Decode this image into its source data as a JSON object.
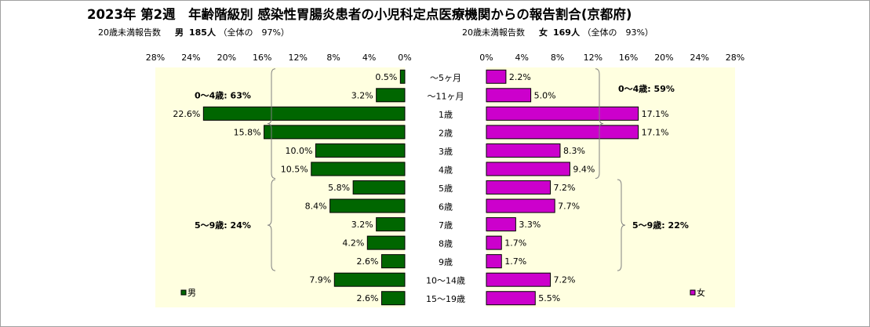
{
  "title": "2023年 第2週　年齢階級別 感染性胃腸炎患者の小児科定点医療機関からの報告割合(京都府)",
  "subtitle_left": {
    "prefix": "20歳未満報告数",
    "sex": "男",
    "count": "185人",
    "share": "（全体の　97%）"
  },
  "subtitle_right": {
    "prefix": "20歳未満報告数",
    "sex": "女",
    "count": "169人",
    "share": "（全体の　93%）"
  },
  "chart_data": {
    "type": "bar",
    "orientation": "horizontal-butterfly",
    "categories": [
      "～5ヶ月",
      "～11ヶ月",
      "1歳",
      "2歳",
      "3歳",
      "4歳",
      "5歳",
      "6歳",
      "7歳",
      "8歳",
      "9歳",
      "10～14歳",
      "15～19歳"
    ],
    "series": [
      {
        "name": "男",
        "color": "#006600",
        "values": [
          0.5,
          3.2,
          22.6,
          15.8,
          10.0,
          10.5,
          5.8,
          8.4,
          3.2,
          4.2,
          2.6,
          7.9,
          2.6
        ],
        "value_labels": [
          "0.5%",
          "3.2%",
          "22.6%",
          "15.8%",
          "10.0%",
          "10.5%",
          "5.8%",
          "8.4%",
          "3.2%",
          "4.2%",
          "2.6%",
          "7.9%",
          "2.6%"
        ]
      },
      {
        "name": "女",
        "color": "#cc00cc",
        "values": [
          2.2,
          5.0,
          17.1,
          17.1,
          8.3,
          9.4,
          7.2,
          7.7,
          3.3,
          1.7,
          1.7,
          7.2,
          5.5
        ],
        "value_labels": [
          "2.2%",
          "5.0%",
          "17.1%",
          "17.1%",
          "8.3%",
          "9.4%",
          "7.2%",
          "7.7%",
          "3.3%",
          "1.7%",
          "1.7%",
          "7.2%",
          "5.5%"
        ]
      }
    ],
    "xlim": [
      0,
      28
    ],
    "x_ticks": [
      "28%",
      "24%",
      "20%",
      "16%",
      "12%",
      "8%",
      "4%",
      "0%",
      "0%",
      "4%",
      "8%",
      "12%",
      "16%",
      "20%",
      "24%",
      "28%"
    ],
    "bracket_labels": {
      "male_0_4": "0～4歳: 63%",
      "male_5_9": "5～9歳: 24%",
      "female_0_4": "0～4歳: 59%",
      "female_5_9": "5～9歳: 22%"
    },
    "legend": {
      "male": "男",
      "female": "女"
    },
    "plot_background": "#ffffe0"
  }
}
